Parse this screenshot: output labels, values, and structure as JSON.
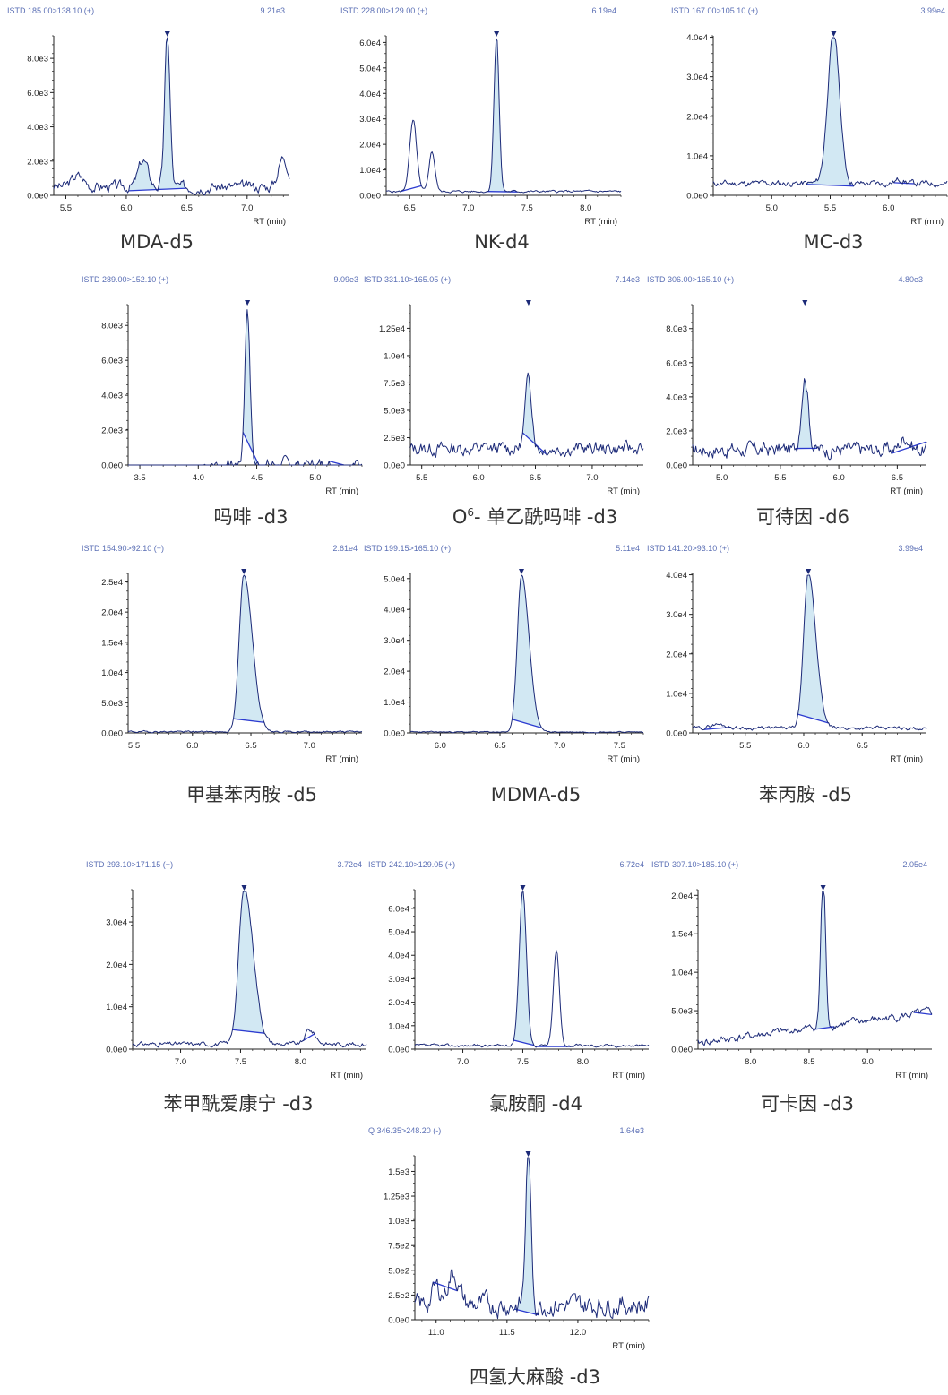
{
  "colors": {
    "trace": "#1c2a78",
    "fill": "#d2e8f3",
    "baseline": "#2c3bd0",
    "header": "#5b6fb5",
    "axis": "#222222"
  },
  "chart_data": [
    {
      "type": "line",
      "caption": "MDA-d5",
      "header_left": "ISTD 185.00>138.10 (+)",
      "header_right": "9.21e3",
      "xlabel": "RT (min)",
      "xticks": [
        5.5,
        6.0,
        6.5,
        7.0
      ],
      "yticks": [
        "0.0e0",
        "2.0e3",
        "4.0e3",
        "6.0e3",
        "8.0e3"
      ],
      "xlim": [
        5.4,
        7.35
      ],
      "ylim": [
        0,
        9210
      ],
      "peaks": [
        [
          6.34,
          9210,
          0.022
        ],
        [
          6.14,
          1800,
          0.04
        ],
        [
          7.3,
          2000,
          0.04
        ],
        [
          5.6,
          900,
          0.05
        ]
      ],
      "base": 500,
      "noise": 350,
      "seed": 3,
      "integration": [
        6.02,
        6.5
      ],
      "extra_baselines": []
    },
    {
      "type": "line",
      "caption": "NK-d4",
      "header_left": "ISTD 228.00>129.00 (+)",
      "header_right": "6.19e4",
      "xlabel": "RT (min)",
      "xticks": [
        6.5,
        7.0,
        7.5,
        8.0
      ],
      "yticks": [
        "0.0e0",
        "1.0e4",
        "2.0e4",
        "3.0e4",
        "4.0e4",
        "5.0e4",
        "6.0e4"
      ],
      "xlim": [
        6.3,
        8.3
      ],
      "ylim": [
        0,
        61900
      ],
      "peaks": [
        [
          7.24,
          61900,
          0.022
        ],
        [
          6.53,
          28500,
          0.03
        ],
        [
          6.69,
          16500,
          0.025
        ]
      ],
      "base": 1500,
      "noise": 500,
      "seed": 5,
      "integration": [
        7.16,
        7.42
      ],
      "extra_baselines": [
        [
          6.43,
          6.6
        ]
      ]
    },
    {
      "type": "line",
      "caption": "MC-d3",
      "header_left": "ISTD 167.00>105.10 (+)",
      "header_right": "3.99e4",
      "xlabel": "RT (min)",
      "xticks": [
        5.0,
        5.5,
        6.0
      ],
      "yticks": [
        "0.0e0",
        "1.0e4",
        "2.0e4",
        "3.0e4",
        "4.0e4"
      ],
      "xlim": [
        4.5,
        6.5
      ],
      "ylim": [
        0,
        39900
      ],
      "peaks": [
        [
          5.53,
          39900,
          0.05
        ],
        [
          6.1,
          2500,
          0.04
        ]
      ],
      "base": 3000,
      "noise": 900,
      "seed": 11,
      "integration": [
        5.3,
        5.7
      ],
      "extra_baselines": [
        [
          6.05,
          6.22
        ]
      ]
    },
    {
      "type": "line",
      "caption": "吗啡 -d3",
      "header_left": "ISTD 289.00>152.10 (+)",
      "header_right": "9.09e3",
      "xlabel": "RT (min)",
      "xticks": [
        3.5,
        4.0,
        4.5,
        5.0
      ],
      "yticks": [
        "0.0e0",
        "2.0e3",
        "4.0e3",
        "6.0e3",
        "8.0e3"
      ],
      "xlim": [
        3.4,
        5.4
      ],
      "ylim": [
        0,
        9090
      ],
      "peaks": [
        [
          4.42,
          9090,
          0.022
        ]
      ],
      "base": 0,
      "noise": 450,
      "seed": 7,
      "flat_before": 4.05,
      "integration": [
        4.38,
        4.52
      ],
      "extra_baselines": [
        [
          5.12,
          5.25
        ]
      ]
    },
    {
      "type": "line",
      "caption": "O6- 单乙酰吗啡 -d3",
      "caption_main": "O",
      "caption_sup": "6",
      "caption_rest": "- 单乙酰吗啡 -d3",
      "header_left": "ISTD 331.10>165.05 (+)",
      "header_right": "7.14e3",
      "xlabel": "RT (min)",
      "xticks": [
        5.5,
        6.0,
        6.5,
        7.0
      ],
      "yticks": [
        "0.0e0",
        "2.5e3",
        "5.0e3",
        "7.5e3",
        "1.0e4",
        "1.25e4"
      ],
      "ytick_values": [
        0,
        2500,
        5000,
        7500,
        10000,
        12500
      ],
      "xlim": [
        5.4,
        7.45
      ],
      "ylim": [
        0,
        14500
      ],
      "peaks": [
        [
          6.44,
          7140,
          0.03
        ]
      ],
      "base": 1500,
      "noise": 700,
      "seed": 13,
      "integration": [
        6.38,
        6.6
      ],
      "extra_baselines": []
    },
    {
      "type": "line",
      "caption": "可待因 -d6",
      "header_left": "ISTD 306.00>165.10 (+)",
      "header_right": "4.80e3",
      "xlabel": "RT (min)",
      "xticks": [
        5.0,
        5.5,
        6.0,
        6.5
      ],
      "yticks": [
        "0.0e0",
        "2.0e3",
        "4.0e3",
        "6.0e3",
        "8.0e3"
      ],
      "xlim": [
        4.75,
        6.75
      ],
      "ylim": [
        0,
        9300
      ],
      "peaks": [
        [
          5.71,
          4800,
          0.03
        ],
        [
          6.57,
          1200,
          0.04
        ]
      ],
      "base": 900,
      "noise": 500,
      "seed": 17,
      "integration": [
        5.63,
        5.82
      ],
      "extra_baselines": [
        [
          6.45,
          6.75
        ]
      ]
    },
    {
      "type": "line",
      "caption": "甲基苯丙胺 -d5",
      "header_left": "ISTD 154.90>92.10 (+)",
      "header_right": "2.61e4",
      "xlabel": "RT (min)",
      "xticks": [
        5.5,
        6.0,
        6.5,
        7.0
      ],
      "yticks": [
        "0.0e0",
        "5.0e3",
        "1.0e4",
        "1.5e4",
        "2.0e4",
        "2.5e4"
      ],
      "xlim": [
        5.45,
        7.45
      ],
      "ylim": [
        0,
        26100
      ],
      "peaks": [
        [
          6.44,
          26100,
          0.04
        ]
      ],
      "base": 200,
      "noise": 150,
      "seed": 19,
      "tail": 1.8,
      "integration": [
        6.35,
        6.62
      ],
      "extra_baselines": []
    },
    {
      "type": "line",
      "caption": "MDMA-d5",
      "header_left": "ISTD 199.15>165.10 (+)",
      "header_right": "5.11e4",
      "xlabel": "RT (min)",
      "xticks": [
        6.0,
        6.5,
        7.0,
        7.5
      ],
      "yticks": [
        "0.0e0",
        "1.0e4",
        "2.0e4",
        "3.0e4",
        "4.0e4",
        "5.0e4"
      ],
      "xlim": [
        5.75,
        7.7
      ],
      "ylim": [
        0,
        51100
      ],
      "peaks": [
        [
          6.68,
          51100,
          0.035
        ]
      ],
      "base": 300,
      "noise": 200,
      "seed": 23,
      "tail": 1.8,
      "integration": [
        6.6,
        6.85
      ],
      "extra_baselines": []
    },
    {
      "type": "line",
      "caption": "苯丙胺 -d5",
      "header_left": "ISTD 141.20>93.10 (+)",
      "header_right": "3.99e4",
      "xlabel": "RT (min)",
      "xticks": [
        5.5,
        6.0,
        6.5
      ],
      "yticks": [
        "0.0e0",
        "1.0e4",
        "2.0e4",
        "3.0e4",
        "4.0e4"
      ],
      "xlim": [
        5.05,
        7.05
      ],
      "ylim": [
        0,
        39900
      ],
      "peaks": [
        [
          6.04,
          39900,
          0.04
        ],
        [
          5.25,
          1600,
          0.05
        ]
      ],
      "base": 1200,
      "noise": 500,
      "seed": 29,
      "tail": 1.6,
      "integration": [
        5.95,
        6.22
      ],
      "extra_baselines": [
        [
          5.15,
          5.38
        ]
      ]
    },
    {
      "type": "line",
      "caption": "苯甲酰爱康宁 -d3",
      "header_left": "ISTD 293.10>171.15 (+)",
      "header_right": "3.72e4",
      "xlabel": "RT (min)",
      "xticks": [
        7.0,
        7.5,
        8.0
      ],
      "yticks": [
        "0.0e0",
        "1.0e4",
        "2.0e4",
        "3.0e4"
      ],
      "xlim": [
        6.6,
        8.55
      ],
      "ylim": [
        0,
        37200
      ],
      "peaks": [
        [
          7.53,
          37200,
          0.045
        ],
        [
          8.07,
          4000,
          0.03
        ]
      ],
      "base": 1200,
      "noise": 600,
      "seed": 31,
      "tail": 1.7,
      "integration": [
        7.43,
        7.7
      ],
      "extra_baselines": [
        [
          8.02,
          8.12
        ]
      ]
    },
    {
      "type": "line",
      "caption": "氯胺酮 -d4",
      "header_left": "ISTD 242.10>129.05 (+)",
      "header_right": "6.72e4",
      "xlabel": "RT (min)",
      "xticks": [
        7.0,
        7.5,
        8.0
      ],
      "yticks": [
        "0.0e0",
        "1.0e4",
        "2.0e4",
        "3.0e4",
        "4.0e4",
        "5.0e4",
        "6.0e4"
      ],
      "xlim": [
        6.6,
        8.55
      ],
      "ylim": [
        0,
        67200
      ],
      "peaks": [
        [
          7.5,
          67200,
          0.03
        ],
        [
          7.78,
          41500,
          0.025
        ]
      ],
      "base": 1500,
      "noise": 700,
      "seed": 37,
      "integration": [
        7.42,
        7.6
      ],
      "extra_baselines": [
        [
          7.6,
          7.9
        ]
      ]
    },
    {
      "type": "line",
      "caption": "可卡因 -d3",
      "header_left": "ISTD 307.10>185.10 (+)",
      "header_right": "2.05e4",
      "xlabel": "RT (min)",
      "xticks": [
        8.0,
        8.5,
        9.0
      ],
      "yticks": [
        "0.0e0",
        "5.0e3",
        "1.0e4",
        "1.5e4",
        "2.0e4"
      ],
      "xlim": [
        7.55,
        9.55
      ],
      "ylim": [
        0,
        20500
      ],
      "peaks": [
        [
          8.62,
          20500,
          0.02
        ]
      ],
      "base": 800,
      "noise": 600,
      "seed": 41,
      "rise": 4000,
      "integration": [
        8.55,
        8.72
      ],
      "extra_baselines": [
        [
          9.4,
          9.55
        ]
      ]
    },
    {
      "type": "line",
      "caption": "四氢大麻酸 -d3",
      "header_left": "Q 346.35>248.20 (-)",
      "header_right": "1.64e3",
      "xlabel": "RT (min)",
      "xticks": [
        11.0,
        11.5,
        12.0
      ],
      "yticks": [
        "0.0e0",
        "2.5e2",
        "5.0e2",
        "7.5e2",
        "1.0e3",
        "1.25e3",
        "1.5e3"
      ],
      "ytick_values": [
        0,
        250,
        500,
        750,
        1000,
        1250,
        1500
      ],
      "xlim": [
        10.85,
        12.5
      ],
      "ylim": [
        0,
        1640
      ],
      "peaks": [
        [
          11.65,
          1640,
          0.018
        ],
        [
          11.12,
          400,
          0.04
        ],
        [
          11.0,
          250,
          0.03
        ]
      ],
      "base": 150,
      "noise": 120,
      "seed": 43,
      "integration": [
        11.55,
        11.72
      ],
      "extra_baselines": [
        [
          10.98,
          11.15
        ]
      ]
    }
  ]
}
